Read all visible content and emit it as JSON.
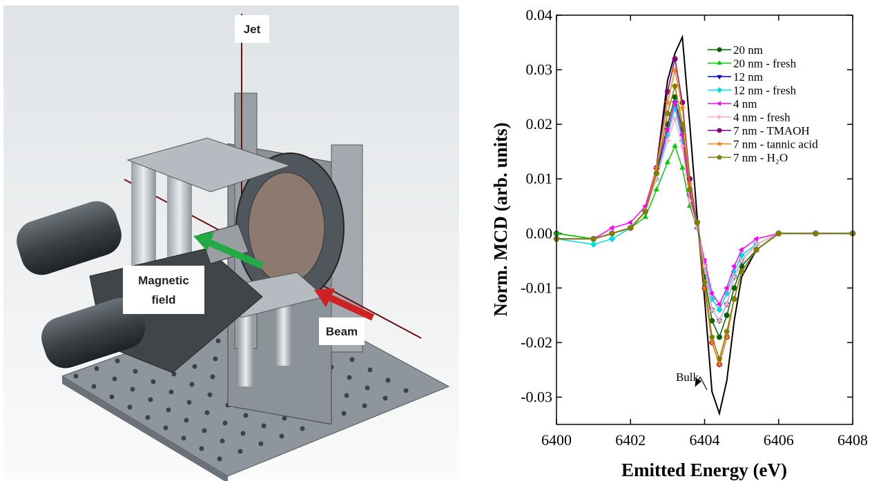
{
  "illustration": {
    "labels": {
      "jet": "Jet",
      "magnetic_field": [
        "Magnetic",
        "field"
      ],
      "beam": "Beam"
    }
  },
  "chart_data": {
    "type": "line",
    "xlabel": "Emitted Energy (eV)",
    "ylabel": "Norm. MCD (arb. units)",
    "xlim": [
      6400,
      6408
    ],
    "xticks": [
      6400,
      6402,
      6404,
      6406,
      6408
    ],
    "ylim": [
      -0.035,
      0.04
    ],
    "yticks": [
      -0.03,
      -0.02,
      -0.01,
      {
        "value": 0,
        "label": "0.00"
      },
      0.01,
      0.02,
      0.03,
      0.04
    ],
    "legend": "upper right",
    "x": [
      6400,
      6401,
      6401.5,
      6402,
      6402.4,
      6402.7,
      6403.0,
      6403.2,
      6403.4,
      6403.6,
      6403.8,
      6404.0,
      6404.2,
      6404.4,
      6404.6,
      6404.8,
      6405.0,
      6405.4,
      6406,
      6407,
      6408
    ],
    "series": [
      {
        "name": "20 nm",
        "color": "#006400",
        "marker": "circle",
        "values": [
          0.0,
          -0.001,
          0.0,
          0.001,
          0.004,
          0.011,
          0.02,
          0.025,
          0.019,
          0.008,
          0.002,
          -0.008,
          -0.016,
          -0.019,
          -0.015,
          -0.01,
          -0.006,
          -0.003,
          0.0,
          0.0,
          0.0
        ]
      },
      {
        "name": "20 nm - fresh",
        "color": "#00cc00",
        "marker": "triangle-up",
        "values": [
          0.0,
          -0.001,
          0.0,
          0.001,
          0.003,
          0.008,
          0.013,
          0.016,
          0.012,
          0.005,
          0.001,
          -0.006,
          -0.014,
          -0.016,
          -0.013,
          -0.008,
          -0.005,
          -0.002,
          0.0,
          0.0,
          0.0
        ]
      },
      {
        "name": "12 nm",
        "color": "#0000cc",
        "marker": "triangle-down",
        "values": [
          -0.001,
          -0.001,
          0.0,
          0.001,
          0.004,
          0.011,
          0.019,
          0.024,
          0.018,
          0.007,
          0.002,
          -0.006,
          -0.014,
          -0.016,
          -0.013,
          -0.008,
          -0.005,
          -0.002,
          0.0,
          0.0,
          0.0
        ]
      },
      {
        "name": "12 nm - fresh",
        "color": "#00dddd",
        "marker": "diamond",
        "values": [
          -0.001,
          -0.002,
          -0.001,
          0.001,
          0.004,
          0.01,
          0.018,
          0.023,
          0.017,
          0.007,
          0.001,
          -0.006,
          -0.012,
          -0.014,
          -0.011,
          -0.007,
          -0.004,
          -0.002,
          0.0,
          0.0,
          0.0
        ]
      },
      {
        "name": "4 nm",
        "color": "#ff00ff",
        "marker": "triangle-left",
        "values": [
          -0.001,
          -0.001,
          0.001,
          0.002,
          0.005,
          0.012,
          0.019,
          0.024,
          0.018,
          0.007,
          0.001,
          -0.005,
          -0.011,
          -0.013,
          -0.01,
          -0.006,
          -0.003,
          -0.001,
          0.0,
          0.0,
          0.0
        ]
      },
      {
        "name": "4 nm - fresh",
        "color": "#ffaacc",
        "marker": "triangle-right",
        "values": [
          -0.001,
          -0.001,
          0.0,
          0.001,
          0.004,
          0.01,
          0.017,
          0.021,
          0.016,
          0.006,
          0.001,
          -0.006,
          -0.014,
          -0.016,
          -0.013,
          -0.008,
          -0.005,
          -0.002,
          0.0,
          0.0,
          0.0
        ]
      },
      {
        "name": "7 nm - TMAOH",
        "color": "#800080",
        "marker": "circle",
        "values": [
          -0.001,
          -0.001,
          0.0,
          0.001,
          0.004,
          0.012,
          0.026,
          0.032,
          0.024,
          0.01,
          0.002,
          -0.01,
          -0.02,
          -0.024,
          -0.019,
          -0.012,
          -0.007,
          -0.003,
          0.0,
          0.0,
          0.0
        ]
      },
      {
        "name": "7 nm - tannic acid",
        "color": "#ff8000",
        "marker": "star",
        "values": [
          -0.001,
          -0.001,
          0.0,
          0.001,
          0.004,
          0.012,
          0.024,
          0.03,
          0.023,
          0.009,
          0.002,
          -0.01,
          -0.02,
          -0.024,
          -0.019,
          -0.012,
          -0.007,
          -0.003,
          0.0,
          0.0,
          0.0
        ]
      },
      {
        "name": "7 nm - H₂O",
        "color": "#808000",
        "marker": "pentagon",
        "values": [
          -0.001,
          -0.001,
          0.0,
          0.001,
          0.004,
          0.011,
          0.022,
          0.027,
          0.02,
          0.008,
          0.002,
          -0.009,
          -0.019,
          -0.023,
          -0.018,
          -0.012,
          -0.007,
          -0.003,
          0.0,
          0.0,
          0.0
        ]
      }
    ],
    "bulk": {
      "name": "Bulk",
      "color": "#000000",
      "values": [
        -0.001,
        -0.001,
        0.0,
        0.001,
        0.004,
        0.012,
        0.028,
        0.033,
        0.036,
        0.02,
        0.003,
        -0.012,
        -0.029,
        -0.033,
        -0.027,
        -0.016,
        -0.008,
        -0.003,
        0.0,
        0.0,
        0.0
      ]
    }
  }
}
